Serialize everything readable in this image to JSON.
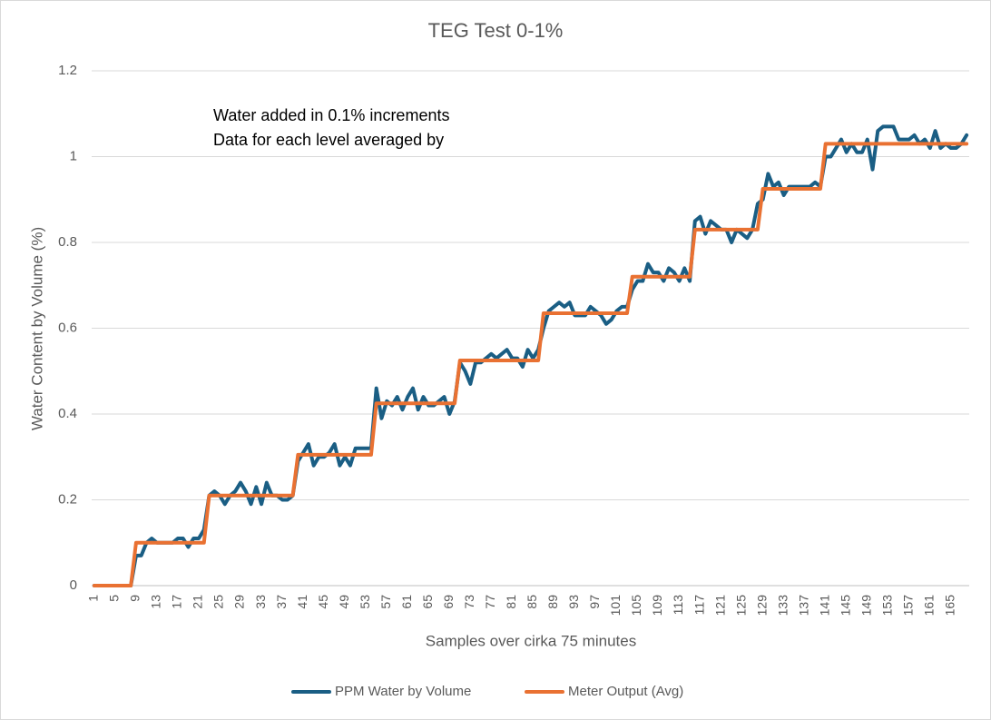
{
  "chart_data": {
    "type": "line",
    "title": "TEG Test 0-1%",
    "x_label": "Samples over cirka 75 minutes",
    "y_label": "Water Content by Volume (%)",
    "annotations": [
      "Water added in 0.1% increments",
      "Data for each level averaged by"
    ],
    "categories": [
      "1",
      null,
      null,
      null,
      "5",
      null,
      null,
      null,
      "9",
      null,
      null,
      null,
      "13",
      null,
      null,
      null,
      "17",
      null,
      null,
      null,
      "21",
      null,
      null,
      null,
      "25",
      null,
      null,
      null,
      "29",
      null,
      null,
      null,
      "33",
      null,
      null,
      null,
      "37",
      null,
      null,
      null,
      "41",
      null,
      null,
      null,
      "45",
      null,
      null,
      null,
      "49",
      null,
      null,
      null,
      "53",
      null,
      null,
      null,
      "57",
      null,
      null,
      null,
      "61",
      null,
      null,
      null,
      "65",
      null,
      null,
      null,
      "69",
      null,
      null,
      null,
      "73",
      null,
      null,
      null,
      "77",
      null,
      null,
      null,
      "81",
      null,
      null,
      null,
      "85",
      null,
      null,
      null,
      "89",
      null,
      null,
      null,
      "93",
      null,
      null,
      null,
      "97",
      null,
      null,
      null,
      "101",
      null,
      null,
      null,
      "105",
      null,
      null,
      null,
      "109",
      null,
      null,
      null,
      "113",
      null,
      null,
      null,
      "117",
      null,
      null,
      null,
      "121",
      null,
      null,
      null,
      "125",
      null,
      null,
      null,
      "129",
      null,
      null,
      null,
      "133",
      null,
      null,
      null,
      "137",
      null,
      null,
      null,
      "141",
      null,
      null,
      null,
      "145",
      null,
      null,
      null,
      "149",
      null,
      null,
      null,
      "153",
      null,
      null,
      null,
      "157",
      null,
      null,
      null,
      "161",
      null,
      null,
      null,
      "165",
      null,
      null,
      null
    ],
    "series": [
      {
        "name": "PPM Water by Volume",
        "color": "#1a5e84",
        "values": [
          0,
          0,
          0,
          0,
          0,
          0,
          0,
          0,
          0.07,
          0.07,
          0.1,
          0.11,
          0.1,
          0.1,
          0.1,
          0.1,
          0.11,
          0.11,
          0.09,
          0.11,
          0.11,
          0.13,
          0.21,
          0.22,
          0.21,
          0.19,
          0.21,
          0.22,
          0.24,
          0.22,
          0.19,
          0.23,
          0.19,
          0.24,
          0.21,
          0.21,
          0.2,
          0.2,
          0.21,
          0.29,
          0.31,
          0.33,
          0.28,
          0.3,
          0.3,
          0.31,
          0.33,
          0.28,
          0.3,
          0.28,
          0.32,
          0.32,
          0.32,
          0.32,
          0.46,
          0.39,
          0.43,
          0.42,
          0.44,
          0.41,
          0.44,
          0.46,
          0.41,
          0.44,
          0.42,
          0.42,
          0.43,
          0.44,
          0.4,
          0.43,
          0.52,
          0.5,
          0.47,
          0.52,
          0.52,
          0.53,
          0.54,
          0.53,
          0.54,
          0.55,
          0.53,
          0.53,
          0.51,
          0.55,
          0.53,
          0.55,
          0.6,
          0.64,
          0.65,
          0.66,
          0.65,
          0.66,
          0.63,
          0.63,
          0.63,
          0.65,
          0.64,
          0.63,
          0.61,
          0.62,
          0.64,
          0.65,
          0.65,
          0.69,
          0.71,
          0.71,
          0.75,
          0.73,
          0.73,
          0.71,
          0.74,
          0.73,
          0.71,
          0.74,
          0.71,
          0.85,
          0.86,
          0.82,
          0.85,
          0.84,
          0.83,
          0.83,
          0.8,
          0.83,
          0.82,
          0.81,
          0.83,
          0.89,
          0.9,
          0.96,
          0.93,
          0.94,
          0.91,
          0.93,
          0.93,
          0.93,
          0.93,
          0.93,
          0.94,
          0.93,
          1.0,
          1.0,
          1.02,
          1.04,
          1.01,
          1.03,
          1.01,
          1.01,
          1.04,
          0.97,
          1.06,
          1.07,
          1.07,
          1.07,
          1.04,
          1.04,
          1.04,
          1.05,
          1.03,
          1.04,
          1.02,
          1.06,
          1.02,
          1.03,
          1.02,
          1.02,
          1.03,
          1.05
        ]
      },
      {
        "name": "Meter Output (Avg)",
        "color": "#e97132",
        "values": [
          0,
          0,
          0,
          0,
          0,
          0,
          0,
          0,
          0.1,
          0.1,
          0.1,
          0.1,
          0.1,
          0.1,
          0.1,
          0.1,
          0.1,
          0.1,
          0.1,
          0.1,
          0.1,
          0.1,
          0.21,
          0.21,
          0.21,
          0.21,
          0.21,
          0.21,
          0.21,
          0.21,
          0.21,
          0.21,
          0.21,
          0.21,
          0.21,
          0.21,
          0.21,
          0.21,
          0.21,
          0.305,
          0.305,
          0.305,
          0.305,
          0.305,
          0.305,
          0.305,
          0.305,
          0.305,
          0.305,
          0.305,
          0.305,
          0.305,
          0.305,
          0.305,
          0.425,
          0.425,
          0.425,
          0.425,
          0.425,
          0.425,
          0.425,
          0.425,
          0.425,
          0.425,
          0.425,
          0.425,
          0.425,
          0.425,
          0.425,
          0.425,
          0.525,
          0.525,
          0.525,
          0.525,
          0.525,
          0.525,
          0.525,
          0.525,
          0.525,
          0.525,
          0.525,
          0.525,
          0.525,
          0.525,
          0.525,
          0.525,
          0.635,
          0.635,
          0.635,
          0.635,
          0.635,
          0.635,
          0.635,
          0.635,
          0.635,
          0.635,
          0.635,
          0.635,
          0.635,
          0.635,
          0.635,
          0.635,
          0.635,
          0.72,
          0.72,
          0.72,
          0.72,
          0.72,
          0.72,
          0.72,
          0.72,
          0.72,
          0.72,
          0.72,
          0.72,
          0.83,
          0.83,
          0.83,
          0.83,
          0.83,
          0.83,
          0.83,
          0.83,
          0.83,
          0.83,
          0.83,
          0.83,
          0.83,
          0.925,
          0.925,
          0.925,
          0.925,
          0.925,
          0.925,
          0.925,
          0.925,
          0.925,
          0.925,
          0.925,
          0.925,
          1.03,
          1.03,
          1.03,
          1.03,
          1.03,
          1.03,
          1.03,
          1.03,
          1.03,
          1.03,
          1.03,
          1.03,
          1.03,
          1.03,
          1.03,
          1.03,
          1.03,
          1.03,
          1.03,
          1.03,
          1.03,
          1.03,
          1.03,
          1.03,
          1.03,
          1.03,
          1.03,
          1.03
        ]
      }
    ],
    "ylim": [
      0,
      1.2
    ],
    "yticks": [
      0,
      0.2,
      0.4,
      0.6,
      0.8,
      1,
      1.2
    ],
    "grid": true,
    "legend": "bottom"
  }
}
